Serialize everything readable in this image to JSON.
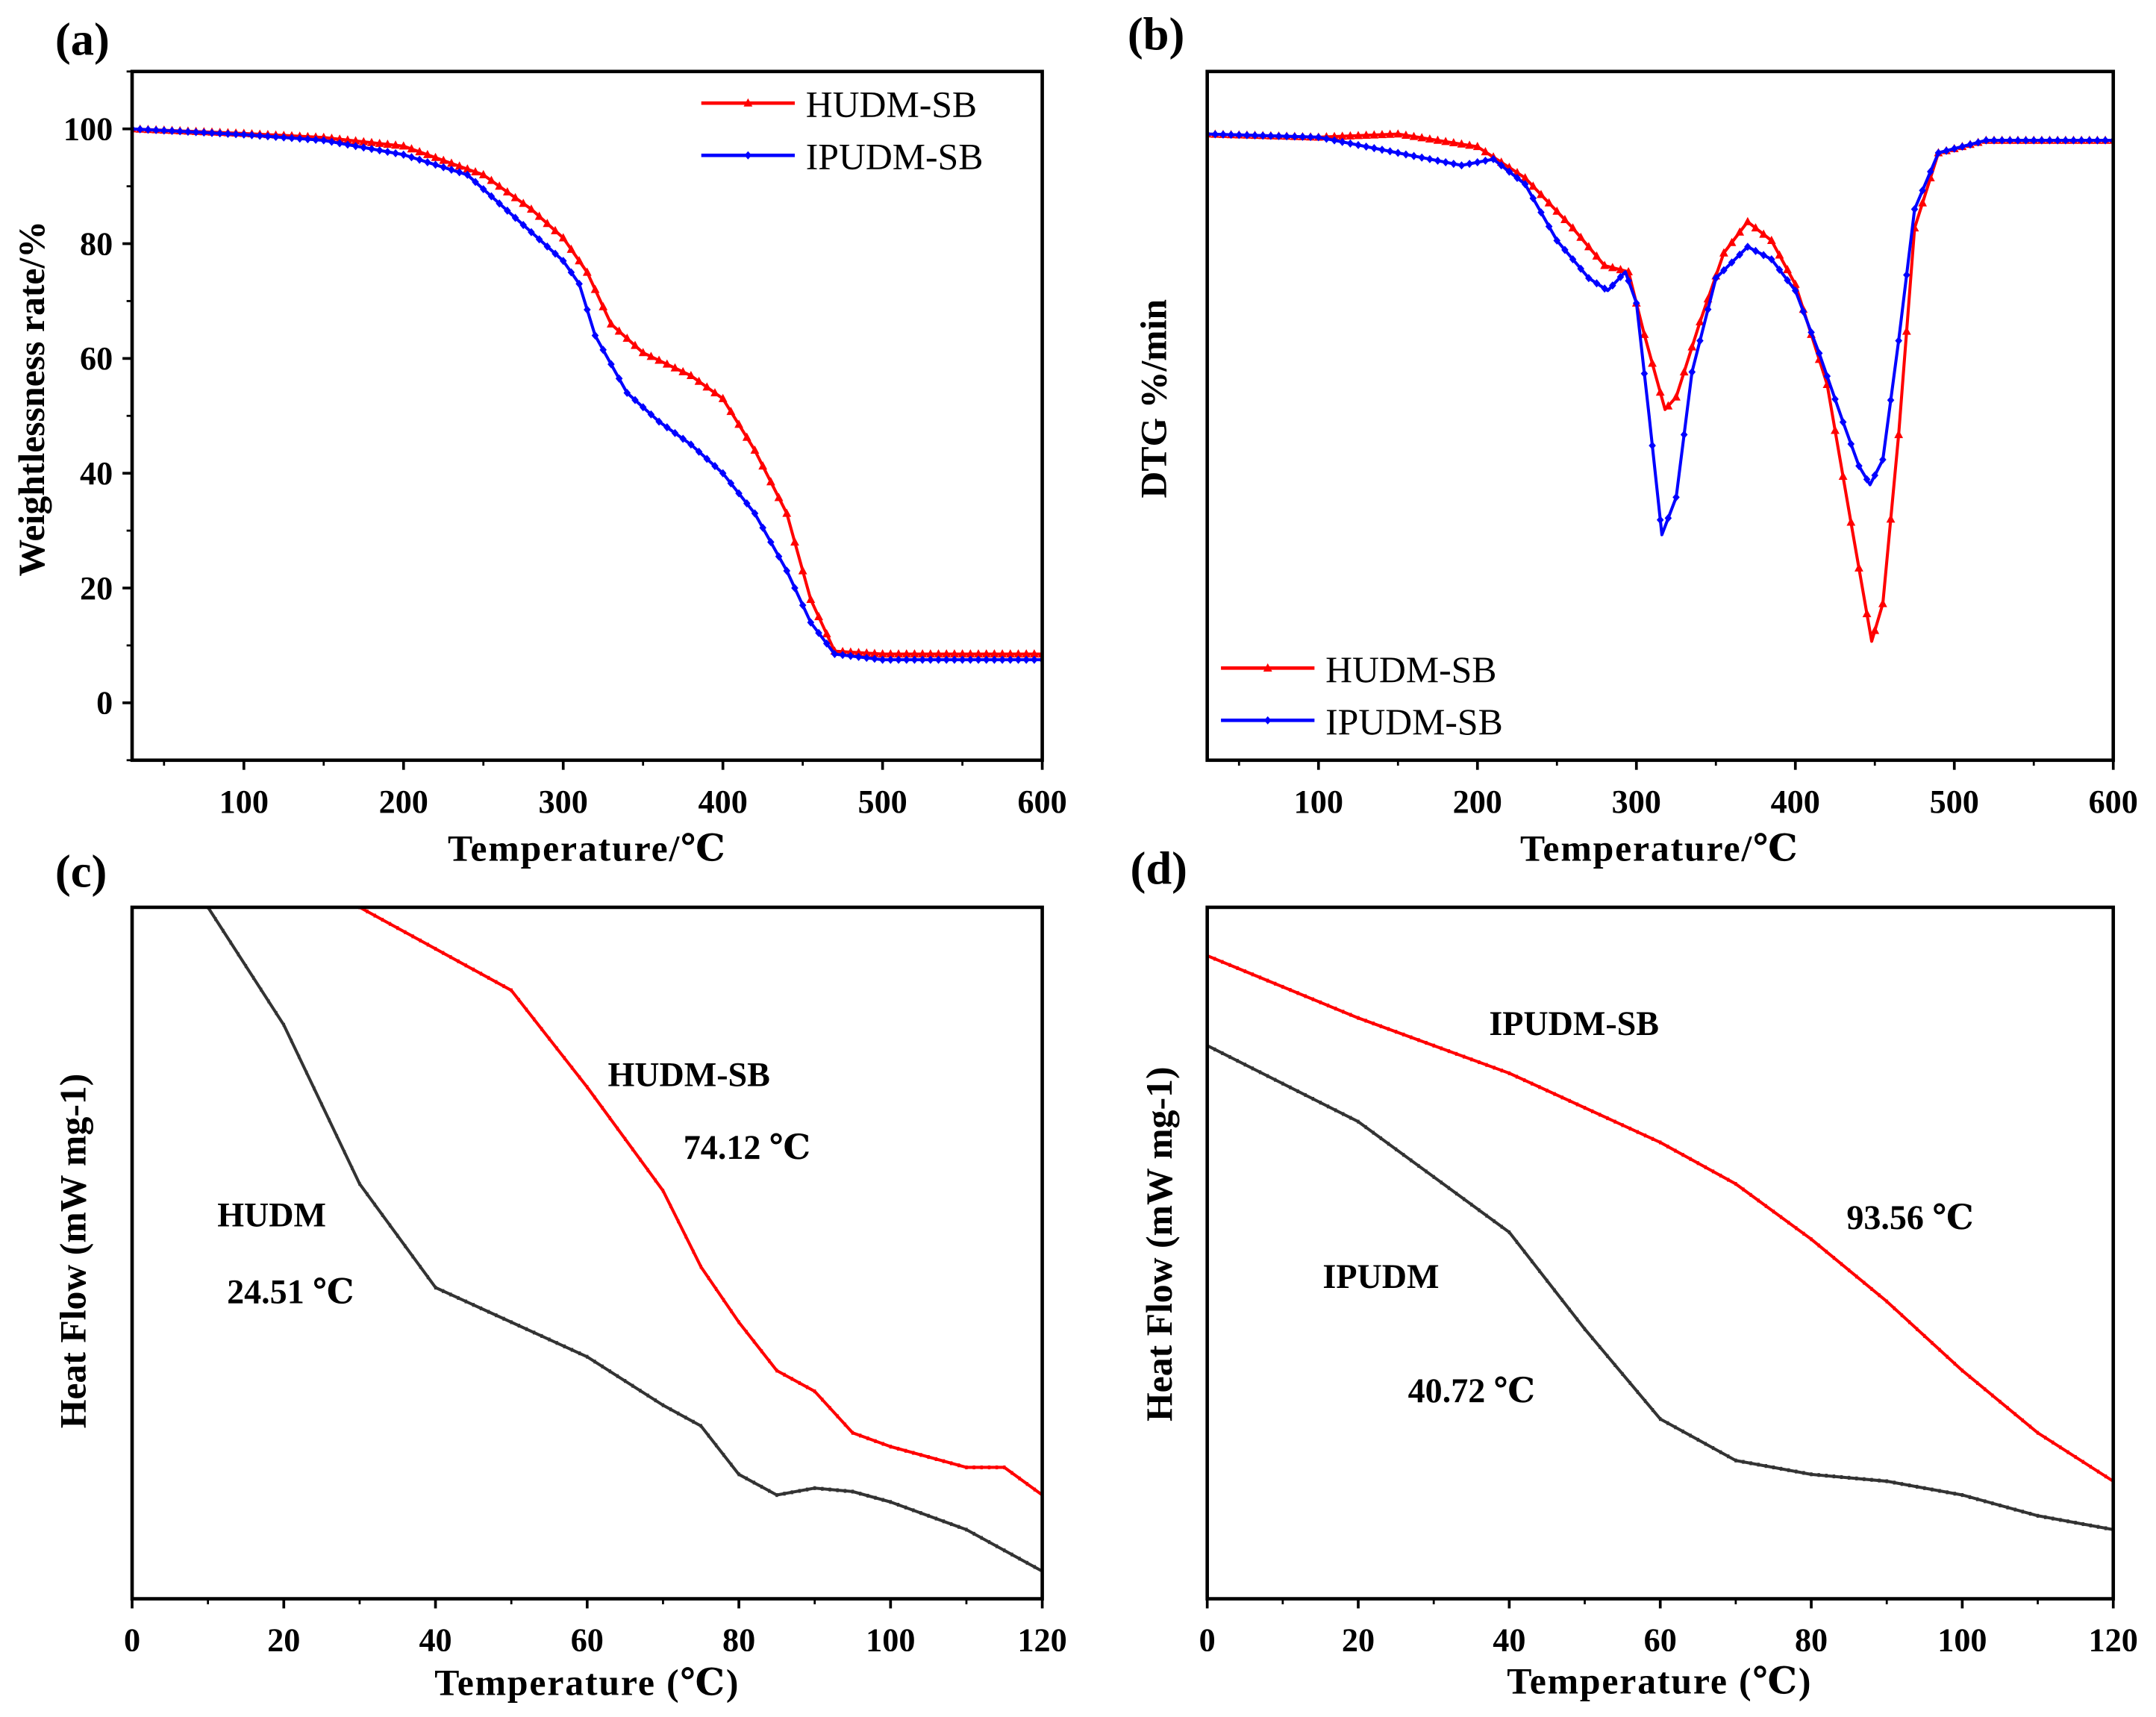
{
  "chart_data": [
    {
      "panel_label": "(a)",
      "type": "line",
      "xlabel": "Temperature/℃",
      "ylabel": "Weightlessness rate/%",
      "xlim": [
        30,
        600
      ],
      "ylim": [
        -10,
        110
      ],
      "xticks": [
        "100",
        "200",
        "300",
        "400",
        "500",
        "600"
      ],
      "yticks": [
        "0",
        "20",
        "40",
        "60",
        "80",
        "100"
      ],
      "legend_position": "top-right",
      "series": [
        {
          "name": "HUDM-SB",
          "color": "#ff0000",
          "marker": "triangle",
          "x": [
            30,
            100,
            150,
            200,
            250,
            280,
            300,
            315,
            330,
            350,
            380,
            400,
            420,
            440,
            455,
            470,
            500,
            600
          ],
          "y": [
            100,
            99.2,
            98.5,
            97,
            92,
            86,
            81,
            75,
            66,
            61,
            57,
            53,
            44,
            33,
            18,
            9,
            8.5,
            8.5
          ]
        },
        {
          "name": "IPUDM-SB",
          "color": "#0000ff",
          "marker": "diamond",
          "x": [
            30,
            100,
            150,
            200,
            240,
            280,
            300,
            310,
            320,
            340,
            360,
            380,
            400,
            420,
            440,
            455,
            470,
            500,
            600
          ],
          "y": [
            100,
            99,
            98,
            95.5,
            92,
            82,
            77,
            73,
            64,
            54,
            49,
            45,
            40,
            33,
            23,
            14,
            8.5,
            7.5,
            7.5
          ]
        }
      ]
    },
    {
      "panel_label": "(b)",
      "type": "line",
      "xlabel": "Temperature/℃",
      "ylabel": "DTG %/min",
      "xlim": [
        30,
        600
      ],
      "ylim": [
        -100,
        10
      ],
      "xticks": [
        "100",
        "200",
        "300",
        "400",
        "500",
        "600"
      ],
      "yticks": [],
      "legend_position": "bottom-left",
      "series": [
        {
          "name": "HUDM-SB",
          "color": "#ff0000",
          "marker": "triangle",
          "x": [
            30,
            100,
            150,
            200,
            230,
            260,
            280,
            295,
            305,
            318,
            325,
            340,
            355,
            370,
            385,
            400,
            420,
            435,
            448,
            455,
            465,
            475,
            490,
            520,
            600
          ],
          "y": [
            0,
            -0.5,
            0,
            -2,
            -7,
            -15,
            -21,
            -22,
            -32,
            -44,
            -42,
            -30,
            -19,
            -14,
            -17,
            -24,
            -40,
            -62,
            -81,
            -75,
            -48,
            -15,
            -3,
            -1,
            -1
          ]
        },
        {
          "name": "IPUDM-SB",
          "color": "#0000ff",
          "marker": "diamond",
          "x": [
            30,
            100,
            150,
            190,
            210,
            230,
            250,
            270,
            282,
            293,
            300,
            308,
            316,
            325,
            335,
            350,
            370,
            385,
            400,
            415,
            430,
            440,
            447,
            455,
            465,
            475,
            490,
            520,
            600
          ],
          "y": [
            0,
            -0.5,
            -3,
            -5,
            -4,
            -8,
            -17,
            -23,
            -25,
            -22,
            -27,
            -45,
            -64,
            -58,
            -38,
            -23,
            -18,
            -20,
            -25,
            -35,
            -46,
            -53,
            -56,
            -52,
            -33,
            -12,
            -3,
            -1,
            -1
          ]
        }
      ]
    },
    {
      "panel_label": "(c)",
      "type": "line",
      "xlabel": "Temperature (℃)",
      "ylabel": "Heat Flow (mW mg-1)",
      "xlim": [
        0,
        120
      ],
      "ylim": [
        -100,
        0
      ],
      "xticks": [
        "0",
        "20",
        "40",
        "60",
        "80",
        "100",
        "120"
      ],
      "yticks": [],
      "series": [
        {
          "name": "HUDM-SB",
          "color": "#ff0000",
          "x": [
            30,
            40,
            50,
            60,
            70,
            75,
            80,
            85,
            90,
            95,
            100,
            110,
            115,
            120
          ],
          "y": [
            0,
            -6,
            -12,
            -26,
            -41,
            -52,
            -60,
            -67,
            -70,
            -76,
            -78,
            -81,
            -81,
            -85
          ]
        },
        {
          "name": "HUDM",
          "color": "#333333",
          "x": [
            10,
            20,
            30,
            40,
            50,
            60,
            70,
            75,
            80,
            85,
            90,
            95,
            100,
            110,
            120
          ],
          "y": [
            0,
            -17,
            -40,
            -55,
            -60,
            -65,
            -72,
            -75,
            -82,
            -85,
            -84,
            -84.5,
            -86,
            -90,
            -96
          ]
        }
      ],
      "annotations": [
        "HUDM-SB",
        "74.12 ℃",
        "HUDM",
        "24.51 ℃"
      ]
    },
    {
      "panel_label": "(d)",
      "type": "line",
      "xlabel": "Temperature (℃)",
      "ylabel": "Heat Flow (mW mg-1)",
      "xlim": [
        0,
        120
      ],
      "ylim": [
        -100,
        0
      ],
      "xticks": [
        "0",
        "20",
        "40",
        "60",
        "80",
        "100",
        "120"
      ],
      "yticks": [],
      "series": [
        {
          "name": "IPUDM-SB",
          "color": "#ff0000",
          "x": [
            0,
            20,
            40,
            60,
            70,
            80,
            90,
            100,
            110,
            120
          ],
          "y": [
            -7,
            -16,
            -24,
            -34,
            -40,
            -48,
            -57,
            -67,
            -76,
            -83
          ]
        },
        {
          "name": "IPUDM",
          "color": "#333333",
          "x": [
            0,
            20,
            40,
            50,
            60,
            70,
            80,
            90,
            100,
            110,
            120
          ],
          "y": [
            -20,
            -31,
            -47,
            -61,
            -74,
            -80,
            -82,
            -83,
            -85,
            -88,
            -90
          ]
        }
      ],
      "annotations": [
        "IPUDM-SB",
        "93.56 ℃",
        "IPUDM",
        "40.72 ℃"
      ]
    }
  ]
}
